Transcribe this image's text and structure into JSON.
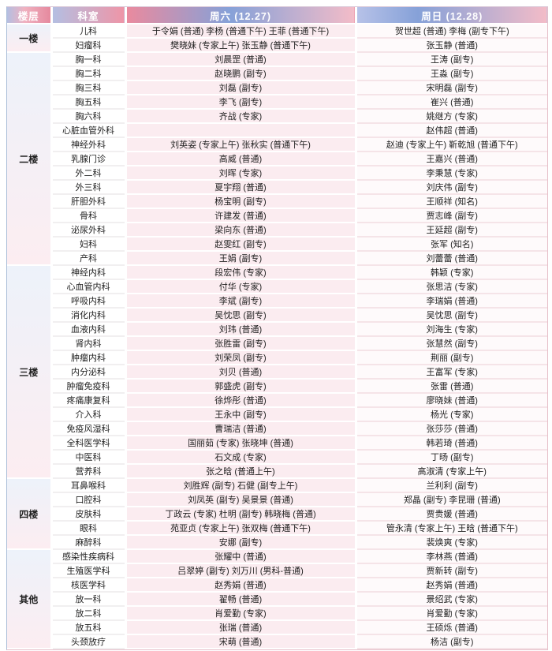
{
  "header": {
    "floor": "楼层",
    "department": "科室",
    "saturday": "周六 (12.27)",
    "sunday": "周日 (12.28)"
  },
  "floors": [
    {
      "name": "一楼",
      "rows": [
        {
          "dept": "儿科",
          "sat": "于令娟 (普通) 李杨 (普通下午) 王菲 (普通下午)",
          "sun": "贺世超 (普通) 李梅 (副专下午)"
        },
        {
          "dept": "妇瘤科",
          "sat": "樊晓妹 (专家上午) 张玉静 (普通下午)",
          "sun": "张玉静 (普通)"
        }
      ]
    },
    {
      "name": "二楼",
      "rows": [
        {
          "dept": "胸一科",
          "sat": "刘晨罡 (普通)",
          "sun": "王涛 (副专)"
        },
        {
          "dept": "胸二科",
          "sat": "赵晓鹏 (副专)",
          "sun": "王淼 (副专)"
        },
        {
          "dept": "胸三科",
          "sat": "刘磊 (副专)",
          "sun": "宋明磊 (副专)"
        },
        {
          "dept": "胸五科",
          "sat": "李飞 (副专)",
          "sun": "崔兴 (普通)"
        },
        {
          "dept": "胸六科",
          "sat": "齐战 (专家)",
          "sun": "姚继方 (专家)"
        },
        {
          "dept": "心脏血管外科",
          "sat": "",
          "sun": "赵伟超 (普通)"
        },
        {
          "dept": "神经外科",
          "sat": "刘英姿 (专家上午) 张秋实 (普通下午)",
          "sun": "赵迪 (专家上午) 靳乾旭 (普通下午)"
        },
        {
          "dept": "乳腺门诊",
          "sat": "高威 (普通)",
          "sun": "王嘉兴 (普通)"
        },
        {
          "dept": "外二科",
          "sat": "刘晖 (专家)",
          "sun": "李秉慧 (专家)"
        },
        {
          "dept": "外三科",
          "sat": "夏宇翔 (普通)",
          "sun": "刘庆伟 (副专)"
        },
        {
          "dept": "肝胆外科",
          "sat": "杨宝明 (副专)",
          "sun": "王顺祥 (知名)"
        },
        {
          "dept": "骨科",
          "sat": "许建发 (普通)",
          "sun": "贾志峰 (副专)"
        },
        {
          "dept": "泌尿外科",
          "sat": "梁向东 (普通)",
          "sun": "王延超 (副专)"
        },
        {
          "dept": "妇科",
          "sat": "赵雯红 (副专)",
          "sun": "张军 (知名)"
        },
        {
          "dept": "产科",
          "sat": "王娟 (副专)",
          "sun": "刘蕾蕾 (普通)"
        }
      ]
    },
    {
      "name": "三楼",
      "rows": [
        {
          "dept": "神经内科",
          "sat": "段宏伟 (专家)",
          "sun": "韩颖 (专家)"
        },
        {
          "dept": "心血管内科",
          "sat": "付华 (专家)",
          "sun": "张思洁 (专家)"
        },
        {
          "dept": "呼吸内科",
          "sat": "李斌 (副专)",
          "sun": "李瑞娟 (普通)"
        },
        {
          "dept": "消化内科",
          "sat": "吴忱思 (副专)",
          "sun": "吴忱思 (副专)"
        },
        {
          "dept": "血液内科",
          "sat": "刘玮 (普通)",
          "sun": "刘海生 (专家)"
        },
        {
          "dept": "肾内科",
          "sat": "张胜雷 (副专)",
          "sun": "张慧然 (副专)"
        },
        {
          "dept": "肿瘤内科",
          "sat": "刘荣凤 (副专)",
          "sun": "荆丽 (副专)"
        },
        {
          "dept": "内分泌科",
          "sat": "刘贝 (普通)",
          "sun": "王富军 (专家)"
        },
        {
          "dept": "肿瘤免疫科",
          "sat": "郭盛虎 (副专)",
          "sun": "张雷 (普通)"
        },
        {
          "dept": "疼痛康复科",
          "sat": "徐烨彤 (普通)",
          "sun": "廖晓妹 (普通)"
        },
        {
          "dept": "介入科",
          "sat": "王永中 (副专)",
          "sun": "杨光 (专家)"
        },
        {
          "dept": "免疫风湿科",
          "sat": "曹瑞洁 (普通)",
          "sun": "张莎莎 (普通)"
        },
        {
          "dept": "全科医学科",
          "sat": "国丽茹 (专家) 张晓坤 (普通)",
          "sun": "韩若琦 (普通)"
        },
        {
          "dept": "中医科",
          "sat": "石文成 (专家)",
          "sun": "丁旸 (副专)"
        },
        {
          "dept": "营养科",
          "sat": "张之晗 (普通上午)",
          "sun": "高淑清 (专家上午)"
        }
      ]
    },
    {
      "name": "四楼",
      "rows": [
        {
          "dept": "耳鼻喉科",
          "sat": "刘胜辉 (副专) 石健 (副专上午)",
          "sun": "兰利利 (副专)"
        },
        {
          "dept": "口腔科",
          "sat": "刘凤英 (副专) 吴景景 (普通)",
          "sun": "郑晶 (副专) 李昆珊 (普通)"
        },
        {
          "dept": "皮肤科",
          "sat": "丁政云 (专家) 杜明 (副专) 韩晓梅 (普通)",
          "sun": "贾贵媛 (普通)"
        },
        {
          "dept": "眼科",
          "sat": "苑亚贞 (专家上午) 张双梅 (普通下午)",
          "sun": "管永清 (专家上午) 王晗 (普通下午)"
        },
        {
          "dept": "麻醉科",
          "sat": "安娜 (副专)",
          "sun": "裴焕爽 (专家)"
        }
      ]
    },
    {
      "name": "其他",
      "rows": [
        {
          "dept": "感染性疾病科",
          "sat": "张耀中 (普通)",
          "sun": "李林燕 (普通)"
        },
        {
          "dept": "生殖医学科",
          "sat": "吕翠婷 (副专) 刘万川 (男科-普通)",
          "sun": "贾新转 (副专)"
        },
        {
          "dept": "核医学科",
          "sat": "赵秀娟 (普通)",
          "sun": "赵秀娟 (普通)"
        },
        {
          "dept": "放一科",
          "sat": "翟畅 (普通)",
          "sun": "景绍武 (专家)"
        },
        {
          "dept": "放二科",
          "sat": "肖爱勤 (专家)",
          "sun": "肖爱勤 (专家)"
        },
        {
          "dept": "放五科",
          "sat": "张瑞 (普通)",
          "sun": "王硕烁 (普通)"
        },
        {
          "dept": "头颈放疗",
          "sat": "宋萌 (普通)",
          "sun": "杨洁 (副专)"
        }
      ]
    }
  ],
  "colors": {
    "header_pink": "#e5899e",
    "header_blue": "#86a1d8",
    "header_light_pink": "#f3bcc8",
    "header_lavender": "#b4bfe2",
    "sat_cell_bg": "#fbecf0",
    "sun_cell_bg": "#fefafb",
    "floor_cell_top": "#edf2fa",
    "floor_cell_bottom": "#fcedf1"
  }
}
